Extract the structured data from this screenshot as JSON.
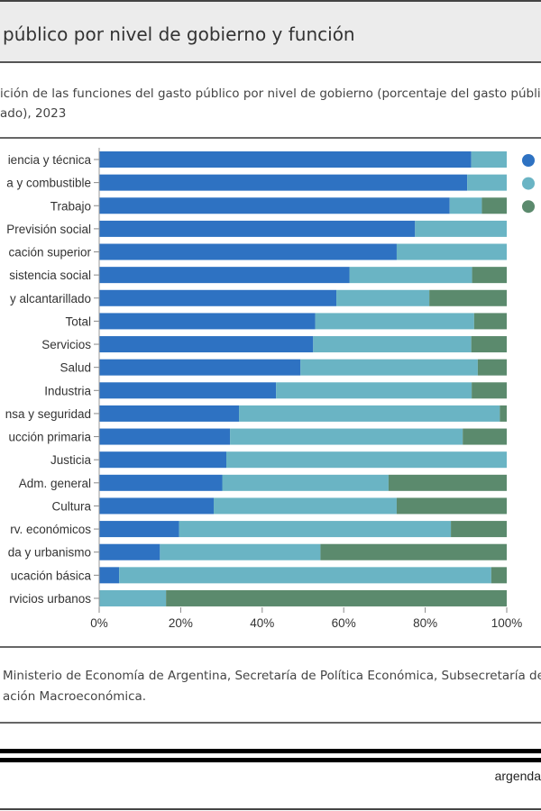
{
  "header": {
    "title": "público por nivel de gobierno y función"
  },
  "subtitle": [
    "ición de las funciones del gasto público por nivel de gobierno (porcentaje del gasto público",
    "ado), 2023"
  ],
  "source": [
    "Ministerio de Economía de Argentina, Secretaría de Política Económica, Subsecretaría de",
    "ación Macroeconómica."
  ],
  "brand": "argenda",
  "colors": {
    "series1": "#2e72c2",
    "series2": "#6ab4c4",
    "series3": "#5b8a6d"
  },
  "chart_data": {
    "type": "bar",
    "orientation": "horizontal",
    "stacked": true,
    "categories": [
      "iencia y técnica",
      "a y combustible",
      "Trabajo",
      "Previsión social",
      "cación superior",
      "sistencia social",
      "y alcantarillado",
      "Total",
      "Servicios",
      "Salud",
      "Industria",
      "nsa y seguridad",
      "ucción primaria",
      "Justicia",
      "Adm. general",
      "Cultura",
      "rv. económicos",
      "da y urbanismo",
      "ucación básica",
      "rvicios urbanos"
    ],
    "series": [
      {
        "values": [
          91.3,
          90.3,
          86.0,
          77.5,
          73.0,
          61.4,
          58.2,
          53.0,
          52.5,
          49.4,
          43.4,
          34.3,
          32.1,
          31.2,
          30.2,
          28.1,
          19.6,
          14.9,
          4.9,
          0
        ]
      },
      {
        "values": [
          8.7,
          9.7,
          7.9,
          22.5,
          27.0,
          30.1,
          22.8,
          39.0,
          38.8,
          43.5,
          48.0,
          64.0,
          57.1,
          68.8,
          40.8,
          44.9,
          66.7,
          39.4,
          91.3,
          16.4
        ]
      },
      {
        "values": [
          0,
          0,
          6.1,
          0,
          0,
          8.5,
          19.0,
          8.0,
          8.7,
          7.1,
          8.6,
          1.7,
          10.8,
          0,
          29.0,
          27.0,
          13.7,
          45.7,
          3.8,
          83.6
        ]
      }
    ],
    "xlim": [
      0,
      100
    ],
    "xticks": [
      "0%",
      "20%",
      "40%",
      "60%",
      "80%",
      "100%"
    ],
    "legend_placement": "right",
    "grid": false
  }
}
